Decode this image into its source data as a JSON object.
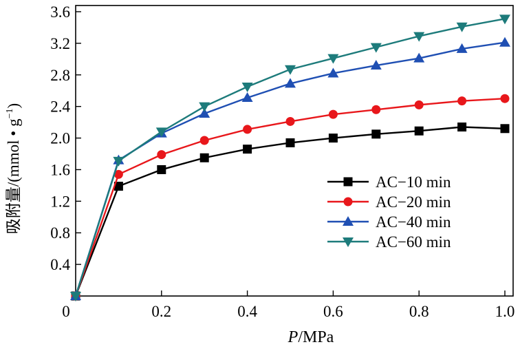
{
  "chart_data": {
    "type": "line",
    "xlabel_italic": "P",
    "xlabel_rest": "/MPa",
    "ylabel_main": "吸附量/(mmol • g",
    "ylabel_sup": "−1",
    "ylabel_close": ")",
    "xlim": [
      0,
      1.0
    ],
    "ylim": [
      0,
      3.6
    ],
    "x_ticks": [
      0.2,
      0.4,
      0.6,
      0.8,
      1.0
    ],
    "x_tick_labels": [
      "0.2",
      "0.4",
      "0.6",
      "0.8",
      "1.0"
    ],
    "y_ticks": [
      0.4,
      0.8,
      1.2,
      1.6,
      2.0,
      2.4,
      2.8,
      3.2,
      3.6
    ],
    "y_tick_labels": [
      "0.4",
      "0.8",
      "1.2",
      "1.6",
      "2.0",
      "2.4",
      "2.8",
      "3.2",
      "3.6"
    ],
    "origin_label": "0",
    "grid": false,
    "legend_position": "center-right",
    "x": [
      0,
      0.1,
      0.2,
      0.3,
      0.4,
      0.5,
      0.6,
      0.7,
      0.8,
      0.9,
      1.0
    ],
    "series": [
      {
        "name": "AC−10 min",
        "color": "#000000",
        "marker": "square",
        "values": [
          0,
          1.39,
          1.6,
          1.75,
          1.86,
          1.94,
          2.0,
          2.05,
          2.09,
          2.14,
          2.12
        ]
      },
      {
        "name": "AC−20 min",
        "color": "#e8171b",
        "marker": "circle",
        "values": [
          0,
          1.54,
          1.79,
          1.97,
          2.11,
          2.21,
          2.3,
          2.36,
          2.42,
          2.47,
          2.5
        ]
      },
      {
        "name": "AC−40 min",
        "color": "#1f4fb3",
        "marker": "triangle-up",
        "values": [
          0,
          1.72,
          2.06,
          2.31,
          2.51,
          2.69,
          2.82,
          2.92,
          3.01,
          3.13,
          3.21
        ]
      },
      {
        "name": "AC−60 min",
        "color": "#1d7b7b",
        "marker": "triangle-down",
        "values": [
          0,
          1.71,
          2.08,
          2.4,
          2.65,
          2.87,
          3.01,
          3.15,
          3.29,
          3.41,
          3.51
        ]
      }
    ]
  }
}
